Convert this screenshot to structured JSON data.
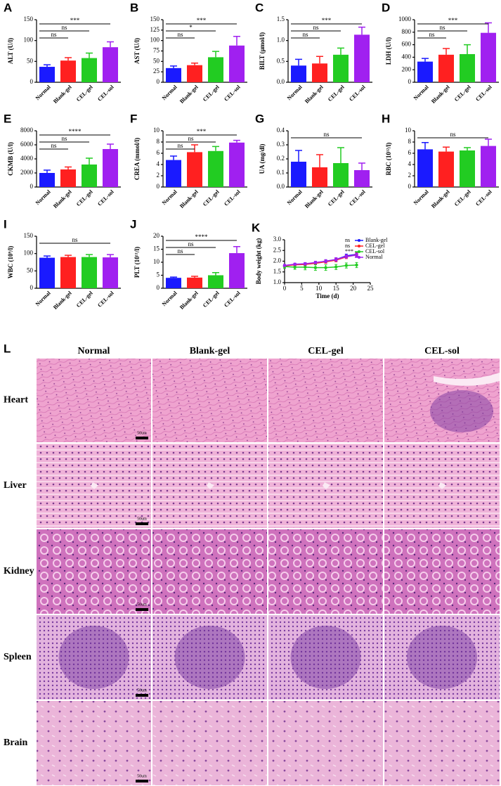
{
  "chart_data": [
    {
      "type": "bar",
      "panel": "A",
      "ylabel": "ALT (U/l)",
      "categories": [
        "Normal",
        "Blank-gel",
        "CEL-gel",
        "CEL-sol"
      ],
      "values": [
        37,
        52,
        58,
        84
      ],
      "errors": [
        5,
        7,
        12,
        13
      ],
      "colors": [
        "#1a1aff",
        "#ff2020",
        "#22cc22",
        "#a020f0"
      ],
      "ylim": [
        0,
        150
      ],
      "yticks": [
        0,
        50,
        100,
        150
      ],
      "significance": [
        {
          "between": [
            "Normal",
            "Blank-gel"
          ],
          "label": "ns"
        },
        {
          "between": [
            "Normal",
            "CEL-gel"
          ],
          "label": "ns"
        },
        {
          "between": [
            "Normal",
            "CEL-sol"
          ],
          "label": "***"
        }
      ]
    },
    {
      "type": "bar",
      "panel": "B",
      "ylabel": "AST (U/l)",
      "categories": [
        "Normal",
        "Blank-gel",
        "CEL-gel",
        "CEL-sol"
      ],
      "values": [
        34,
        41,
        60,
        88
      ],
      "errors": [
        5,
        5,
        14,
        22
      ],
      "colors": [
        "#1a1aff",
        "#ff2020",
        "#22cc22",
        "#a020f0"
      ],
      "ylim": [
        0,
        150
      ],
      "yticks": [
        0,
        25,
        50,
        75,
        100,
        125,
        150
      ],
      "significance": [
        {
          "between": [
            "Normal",
            "Blank-gel"
          ],
          "label": "ns"
        },
        {
          "between": [
            "Normal",
            "CEL-gel"
          ],
          "label": "*"
        },
        {
          "between": [
            "Normal",
            "CEL-sol"
          ],
          "label": "***"
        }
      ]
    },
    {
      "type": "bar",
      "panel": "C",
      "ylabel": "BILT (μmol/l)",
      "categories": [
        "Normal",
        "Blank-gel",
        "CEL-gel",
        "CEL-sol"
      ],
      "values": [
        0.4,
        0.45,
        0.66,
        1.14
      ],
      "errors": [
        0.15,
        0.17,
        0.16,
        0.18
      ],
      "colors": [
        "#1a1aff",
        "#ff2020",
        "#22cc22",
        "#a020f0"
      ],
      "ylim": [
        0,
        1.5
      ],
      "yticks": [
        {
          "value": 0,
          "label": "0.0"
        },
        0.5,
        {
          "value": 1,
          "label": "1.0"
        },
        1.5
      ],
      "significance": [
        {
          "between": [
            "Normal",
            "Blank-gel"
          ],
          "label": "ns"
        },
        {
          "between": [
            "Normal",
            "CEL-gel"
          ],
          "label": "ns"
        },
        {
          "between": [
            "Normal",
            "CEL-sol"
          ],
          "label": "***"
        }
      ]
    },
    {
      "type": "bar",
      "panel": "D",
      "ylabel": "LDH (U/l)",
      "categories": [
        "Normal",
        "Blank-gel",
        "CEL-gel",
        "CEL-sol"
      ],
      "values": [
        330,
        440,
        450,
        790
      ],
      "errors": [
        50,
        100,
        150,
        160
      ],
      "colors": [
        "#1a1aff",
        "#ff2020",
        "#22cc22",
        "#a020f0"
      ],
      "ylim": [
        0,
        1000
      ],
      "yticks": [
        0,
        200,
        400,
        600,
        800,
        1000
      ],
      "significance": [
        {
          "between": [
            "Normal",
            "Blank-gel"
          ],
          "label": "ns"
        },
        {
          "between": [
            "Normal",
            "CEL-gel"
          ],
          "label": "ns"
        },
        {
          "between": [
            "Normal",
            "CEL-sol"
          ],
          "label": "***"
        }
      ]
    },
    {
      "type": "bar",
      "panel": "E",
      "ylabel": "CKMB (U/l)",
      "categories": [
        "Normal",
        "Blank-gel",
        "CEL-gel",
        "CEL-sol"
      ],
      "values": [
        2000,
        2500,
        3200,
        5400
      ],
      "errors": [
        400,
        350,
        900,
        700
      ],
      "colors": [
        "#1a1aff",
        "#ff2020",
        "#22cc22",
        "#a020f0"
      ],
      "ylim": [
        0,
        8000
      ],
      "yticks": [
        0,
        2000,
        4000,
        6000,
        8000
      ],
      "significance": [
        {
          "between": [
            "Normal",
            "Blank-gel"
          ],
          "label": "ns"
        },
        {
          "between": [
            "Normal",
            "CEL-gel"
          ],
          "label": "ns"
        },
        {
          "between": [
            "Normal",
            "CEL-sol"
          ],
          "label": "****"
        }
      ]
    },
    {
      "type": "bar",
      "panel": "F",
      "ylabel": "CREA (mmol/l)",
      "categories": [
        "Normal",
        "Blank-gel",
        "CEL-gel",
        "CEL-sol"
      ],
      "values": [
        4.8,
        6.2,
        6.4,
        7.9
      ],
      "errors": [
        0.7,
        1.3,
        0.8,
        0.4
      ],
      "colors": [
        "#1a1aff",
        "#ff2020",
        "#22cc22",
        "#a020f0"
      ],
      "ylim": [
        0,
        10
      ],
      "yticks": [
        0,
        2,
        4,
        6,
        8,
        10
      ],
      "significance": [
        {
          "between": [
            "Normal",
            "Blank-gel"
          ],
          "label": "ns"
        },
        {
          "between": [
            "Normal",
            "CEL-gel"
          ],
          "label": "ns"
        },
        {
          "between": [
            "Normal",
            "CEL-sol"
          ],
          "label": "***"
        }
      ]
    },
    {
      "type": "bar",
      "panel": "G",
      "ylabel": "UA (mg/dl)",
      "categories": [
        "Normal",
        "Blank-gel",
        "CEL-gel",
        "CEL-sol"
      ],
      "values": [
        0.18,
        0.14,
        0.17,
        0.12
      ],
      "errors": [
        0.08,
        0.09,
        0.11,
        0.05
      ],
      "colors": [
        "#1a1aff",
        "#ff2020",
        "#22cc22",
        "#a020f0"
      ],
      "ylim": [
        0,
        0.4
      ],
      "yticks": [
        {
          "value": 0,
          "label": "0.0"
        },
        0.1,
        0.2,
        0.3,
        0.4
      ],
      "significance": [
        {
          "between": [
            "Normal",
            "CEL-sol"
          ],
          "label": "ns"
        }
      ]
    },
    {
      "type": "bar",
      "panel": "H",
      "ylabel": "RBC (10¹²/l)",
      "categories": [
        "Normal",
        "Blank-gel",
        "CEL-gel",
        "CEL-sol"
      ],
      "values": [
        6.7,
        6.3,
        6.5,
        7.3
      ],
      "errors": [
        1.2,
        0.8,
        0.5,
        1.2
      ],
      "colors": [
        "#1a1aff",
        "#ff2020",
        "#22cc22",
        "#a020f0"
      ],
      "ylim": [
        0,
        10
      ],
      "yticks": [
        0,
        2,
        4,
        6,
        8,
        10
      ],
      "significance": [
        {
          "between": [
            "Normal",
            "CEL-sol"
          ],
          "label": "ns"
        }
      ]
    },
    {
      "type": "bar",
      "panel": "I",
      "ylabel": "WBC (10⁹/l)",
      "categories": [
        "Normal",
        "Blank-gel",
        "CEL-gel",
        "CEL-sol"
      ],
      "values": [
        88,
        90,
        90,
        89
      ],
      "errors": [
        5,
        5,
        7,
        8
      ],
      "colors": [
        "#1a1aff",
        "#ff2020",
        "#22cc22",
        "#a020f0"
      ],
      "ylim": [
        0,
        150
      ],
      "yticks": [
        0,
        50,
        100,
        150
      ],
      "significance": [
        {
          "between": [
            "Normal",
            "CEL-sol"
          ],
          "label": "ns"
        }
      ]
    },
    {
      "type": "bar",
      "panel": "J",
      "ylabel": "PLT (10¹¹/l)",
      "categories": [
        "Normal",
        "Blank-gel",
        "CEL-gel",
        "CEL-sol"
      ],
      "values": [
        4,
        4.1,
        5,
        13.5
      ],
      "errors": [
        0.3,
        0.5,
        1,
        2.5
      ],
      "colors": [
        "#1a1aff",
        "#ff2020",
        "#22cc22",
        "#a020f0"
      ],
      "ylim": [
        0,
        20
      ],
      "yticks": [
        0,
        5,
        10,
        15,
        20
      ],
      "significance": [
        {
          "between": [
            "Normal",
            "Blank-gel"
          ],
          "label": "ns"
        },
        {
          "between": [
            "Normal",
            "CEL-gel"
          ],
          "label": "ns"
        },
        {
          "between": [
            "Normal",
            "CEL-sol"
          ],
          "label": "****"
        }
      ]
    },
    {
      "type": "line",
      "panel": "K",
      "ylabel": "Body weight (kg)",
      "xlabel": "Time (d)",
      "x": [
        0,
        3,
        6,
        9,
        12,
        15,
        18,
        21
      ],
      "xlim": [
        0,
        25
      ],
      "xticks": [
        0,
        5,
        10,
        15,
        20,
        25
      ],
      "ylim": [
        1,
        3
      ],
      "yticks": [
        {
          "value": 1,
          "label": "1.0"
        },
        1.5,
        {
          "value": 2,
          "label": "2.0"
        },
        2.5,
        {
          "value": 3,
          "label": "3.0"
        }
      ],
      "series": [
        {
          "name": "Blank-gel",
          "color": "#1a1aff",
          "significance": "ns",
          "values": [
            1.8,
            1.85,
            1.87,
            1.92,
            2.0,
            2.08,
            2.25,
            2.32
          ],
          "errors": [
            0.05,
            0.05,
            0.06,
            0.06,
            0.07,
            0.08,
            0.08,
            0.08
          ]
        },
        {
          "name": "CEL-gel",
          "color": "#ff2020",
          "significance": "ns",
          "values": [
            1.78,
            1.83,
            1.85,
            1.9,
            1.97,
            2.05,
            2.2,
            2.3
          ],
          "errors": [
            0.05,
            0.05,
            0.06,
            0.06,
            0.07,
            0.08,
            0.08,
            0.08
          ]
        },
        {
          "name": "CEL-sol",
          "color": "#22cc22",
          "significance": "***",
          "values": [
            1.75,
            1.72,
            1.72,
            1.7,
            1.7,
            1.73,
            1.8,
            1.82
          ],
          "errors": [
            0.08,
            0.1,
            0.12,
            0.13,
            0.13,
            0.12,
            0.12,
            0.12
          ]
        },
        {
          "name": "Normal",
          "color": "#a020f0",
          "values": [
            1.8,
            1.86,
            1.88,
            1.94,
            2.0,
            2.08,
            2.22,
            2.28
          ],
          "errors": [
            0.05,
            0.05,
            0.06,
            0.06,
            0.07,
            0.08,
            0.08,
            0.08
          ]
        }
      ]
    }
  ],
  "histology": {
    "panel": "L",
    "columns": [
      "Normal",
      "Blank-gel",
      "CEL-gel",
      "CEL-sol"
    ],
    "rows": [
      "Heart",
      "Liver",
      "Kidney",
      "Spleen",
      "Brain"
    ],
    "scale_bar": "50um"
  }
}
